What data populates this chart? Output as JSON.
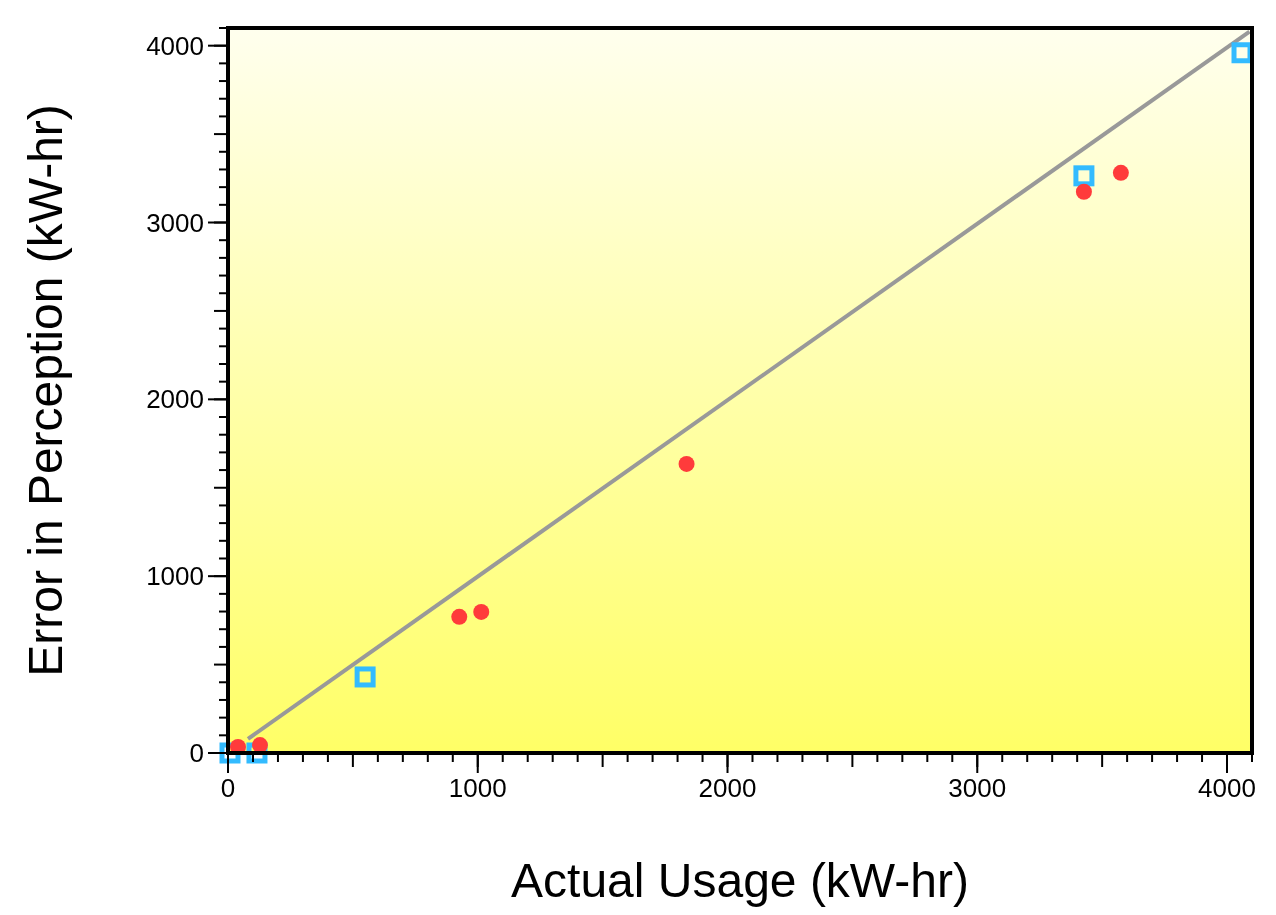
{
  "chart_data": {
    "type": "scatter",
    "xlabel": "Actual Usage (kW-hr)",
    "ylabel": "Error in Perception (kW-hr)",
    "xlim": [
      0,
      4100
    ],
    "ylim": [
      0,
      4100
    ],
    "xticks": [
      0,
      1000,
      2000,
      3000,
      4000
    ],
    "yticks": [
      0,
      1000,
      2000,
      3000,
      4000
    ],
    "grid": false,
    "series": [
      {
        "type": "line",
        "color": "#999999",
        "marker": "none",
        "x": [
          80,
          4090
        ],
        "values": [
          80,
          4080
        ]
      },
      {
        "color": "#33bbff",
        "marker": "square",
        "x": [
          8,
          116,
          549,
          3427,
          4060
        ],
        "values": [
          0,
          0,
          430,
          3264,
          3960
        ]
      },
      {
        "color": "#ff3b3b",
        "marker": "circle",
        "x": [
          40,
          128,
          926,
          1014,
          1836,
          3427,
          3575
        ],
        "values": [
          34,
          45,
          770,
          798,
          1635,
          3174,
          3281
        ]
      }
    ]
  }
}
